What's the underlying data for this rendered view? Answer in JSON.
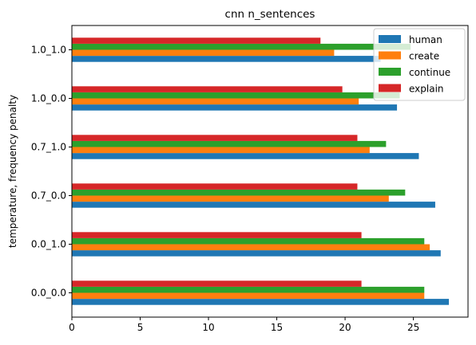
{
  "chart_data": {
    "type": "bar",
    "orientation": "horizontal",
    "title": "cnn n_sentences",
    "xlabel": "",
    "ylabel": "temperature, frequency penalty",
    "xlim": [
      0,
      29
    ],
    "x_ticks": [
      0,
      5,
      10,
      15,
      20,
      25
    ],
    "categories": [
      "0.0_0.0",
      "0.0_1.0",
      "0.7_0.0",
      "0.7_1.0",
      "1.0_0.0",
      "1.0_1.0"
    ],
    "series": [
      {
        "name": "human",
        "color": "#1f77b4",
        "values": [
          27.6,
          27.0,
          26.6,
          25.4,
          23.8,
          22.6
        ]
      },
      {
        "name": "create",
        "color": "#ff7f0e",
        "values": [
          25.8,
          26.2,
          23.2,
          21.8,
          21.0,
          19.2
        ]
      },
      {
        "name": "continue",
        "color": "#2ca02c",
        "values": [
          25.8,
          25.8,
          24.4,
          23.0,
          24.0,
          24.8
        ]
      },
      {
        "name": "explain",
        "color": "#d62728",
        "values": [
          21.2,
          21.2,
          20.9,
          20.9,
          19.8,
          18.2
        ]
      }
    ],
    "grid": false,
    "legend_position": "top-right"
  }
}
